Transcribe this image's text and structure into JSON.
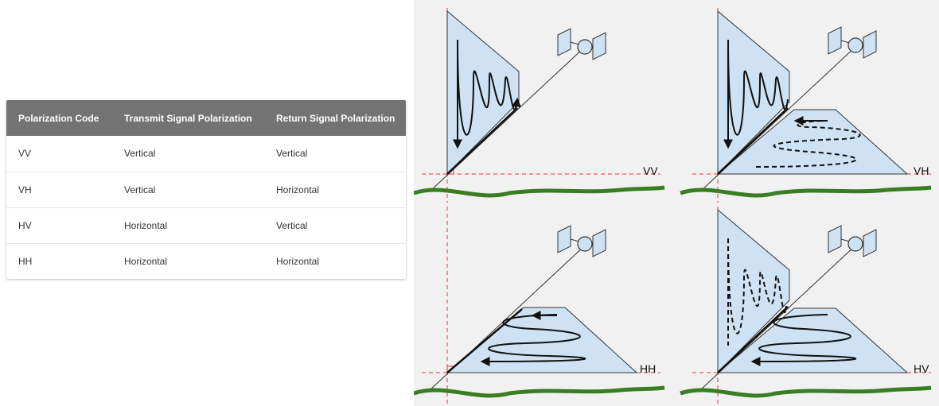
{
  "table": {
    "headers": [
      "Polarization Code",
      "Transmit Signal Polarization",
      "Return Signal Polarization"
    ],
    "rows": [
      [
        "VV",
        "Vertical",
        "Vertical"
      ],
      [
        "VH",
        "Vertical",
        "Horizontal"
      ],
      [
        "HV",
        "Horizontal",
        "Vertical"
      ],
      [
        "HH",
        "Horizontal",
        "Horizontal"
      ]
    ]
  },
  "diagrams": {
    "panels": [
      {
        "code": "VV"
      },
      {
        "code": "VH"
      },
      {
        "code": "HH"
      },
      {
        "code": "HV"
      }
    ]
  },
  "colors": {
    "header_bg": "#737373",
    "plane_fill": "#cfe2f3",
    "ground": "#3a7d23",
    "guide": "#e53935",
    "panel_bg": "#f1f1f1"
  }
}
